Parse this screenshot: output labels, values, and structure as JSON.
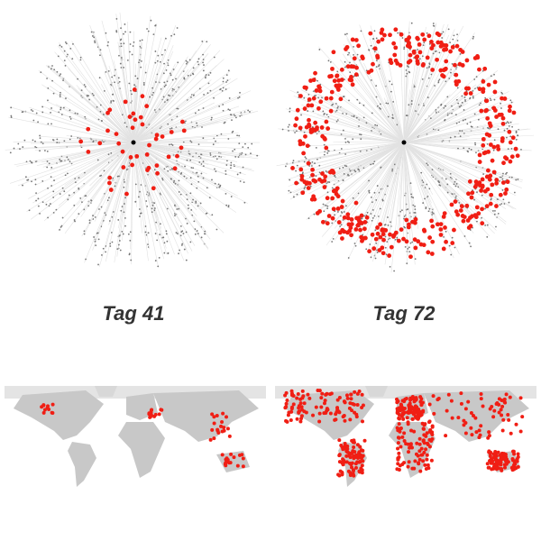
{
  "panels": [
    {
      "label": "Tag 41"
    },
    {
      "label": "Tag 72"
    }
  ]
}
